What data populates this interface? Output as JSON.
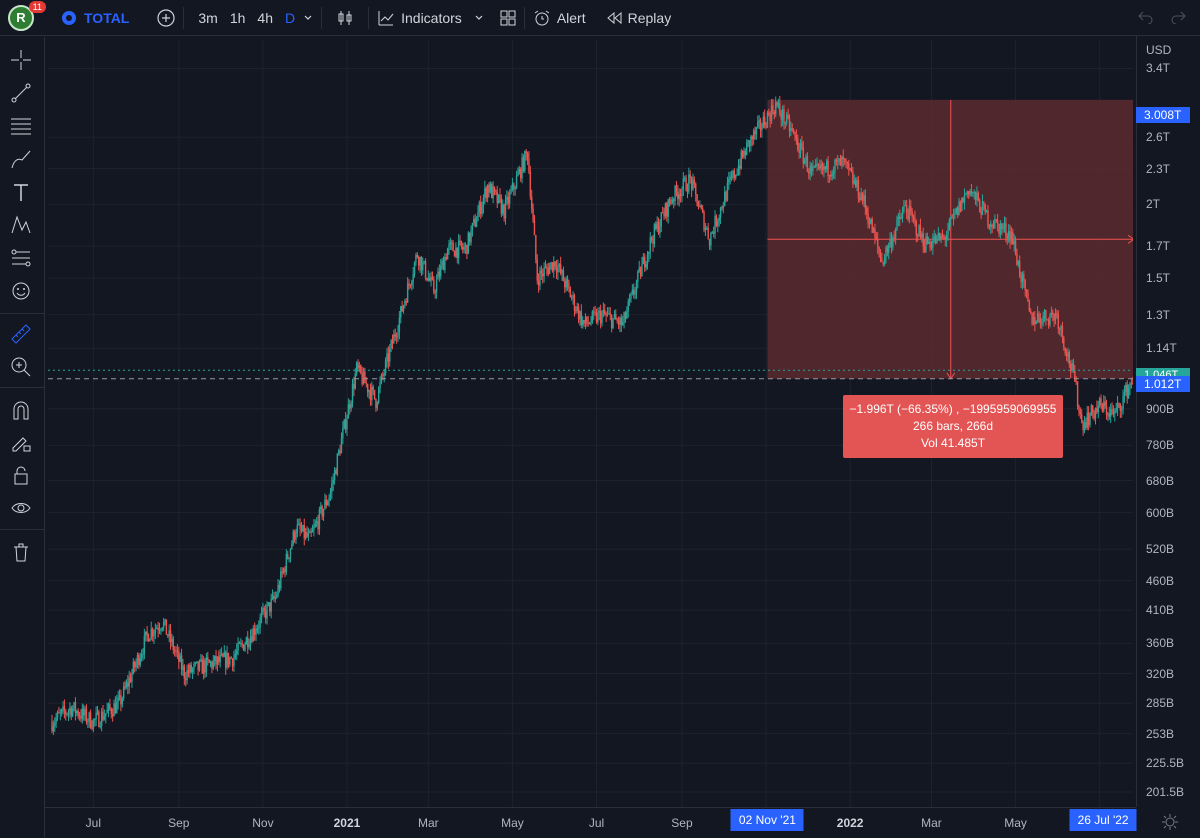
{
  "header": {
    "avatar_letter": "R",
    "notification_count": "11",
    "symbol": "TOTAL",
    "timeframes": [
      "3m",
      "1h",
      "4h",
      "D"
    ],
    "active_timeframe": "D",
    "indicators_label": "Indicators",
    "alert_label": "Alert",
    "replay_label": "Replay",
    "icons": [
      "plus-circle-icon",
      "chevron-down-icon",
      "candles-icon",
      "indicators-icon",
      "layout-grid-icon",
      "alarm-clock-icon",
      "replay-icon",
      "undo-icon",
      "redo-icon"
    ]
  },
  "left_toolbar": {
    "tools": [
      "crosshair-icon",
      "trend-line-icon",
      "fib-lines-icon",
      "brush-icon",
      "text-icon",
      "pattern-icon",
      "prediction-icon",
      "emoji-icon",
      "ruler-icon",
      "zoom-icon",
      "magnet-icon",
      "lock-drawing-icon",
      "lock-icon",
      "eye-icon",
      "trash-icon"
    ],
    "active_tool": "ruler-icon"
  },
  "price_axis": {
    "currency": "USD",
    "labels": [
      "3.4T",
      "2.6T",
      "2.3T",
      "2T",
      "1.7T",
      "1.5T",
      "1.3T",
      "1.14T",
      "900B",
      "780B",
      "680B",
      "600B",
      "520B",
      "460B",
      "410B",
      "360B",
      "320B",
      "285B",
      "253B",
      "225.5B",
      "201.5B"
    ],
    "highlight_top": "3.008T",
    "last_price": "1.046T",
    "crosshair_price": "1.012T"
  },
  "time_axis": {
    "labels": [
      "Jul",
      "Sep",
      "Nov",
      "2021",
      "Mar",
      "May",
      "Jul",
      "Sep",
      "2022",
      "Mar",
      "May"
    ],
    "bold_labels": [
      "2021",
      "2022"
    ],
    "highlight_start": "02 Nov '21",
    "highlight_end": "26 Jul '22"
  },
  "measure_tooltip": {
    "line1": "−1.996T (−66.35%) , −1995959069955",
    "line2": "266 bars, 266d",
    "line3": "Vol 41.485T"
  },
  "colors": {
    "background": "#131722",
    "up": "#26a69a",
    "down": "#ef5350",
    "accent": "#2962ff",
    "measure_fill": "#5c2a2e",
    "tooltip": "#e35454"
  },
  "chart_data": {
    "type": "candlestick",
    "title": "",
    "x_range": [
      "2020-06-01",
      "2022-07-31"
    ],
    "y_scale": "log",
    "ylim_usd": [
      190000000000,
      3800000000000
    ],
    "anchors": [
      [
        "2020-06-01",
        265
      ],
      [
        "2020-06-15",
        280
      ],
      [
        "2020-07-01",
        265
      ],
      [
        "2020-07-20",
        285
      ],
      [
        "2020-08-10",
        375
      ],
      [
        "2020-08-20",
        392
      ],
      [
        "2020-09-05",
        320
      ],
      [
        "2020-09-20",
        330
      ],
      [
        "2020-10-10",
        340
      ],
      [
        "2020-10-25",
        378
      ],
      [
        "2020-11-10",
        430
      ],
      [
        "2020-11-25",
        565
      ],
      [
        "2020-12-05",
        540
      ],
      [
        "2020-12-20",
        650
      ],
      [
        "2021-01-08",
        1050
      ],
      [
        "2021-01-22",
        930
      ],
      [
        "2021-02-10",
        1330
      ],
      [
        "2021-02-21",
        1650
      ],
      [
        "2021-03-05",
        1430
      ],
      [
        "2021-03-15",
        1680
      ],
      [
        "2021-03-28",
        1680
      ],
      [
        "2021-04-13",
        2150
      ],
      [
        "2021-04-25",
        1950
      ],
      [
        "2021-05-12",
        2450
      ],
      [
        "2021-05-19",
        1500
      ],
      [
        "2021-06-01",
        1600
      ],
      [
        "2021-06-22",
        1250
      ],
      [
        "2021-07-05",
        1300
      ],
      [
        "2021-07-20",
        1250
      ],
      [
        "2021-08-10",
        1750
      ],
      [
        "2021-08-25",
        2060
      ],
      [
        "2021-09-07",
        2200
      ],
      [
        "2021-09-21",
        1750
      ],
      [
        "2021-10-05",
        2150
      ],
      [
        "2021-10-20",
        2550
      ],
      [
        "2021-11-08",
        2950
      ],
      [
        "2021-11-20",
        2650
      ],
      [
        "2021-12-04",
        2250
      ],
      [
        "2021-12-27",
        2350
      ],
      [
        "2022-01-10",
        2050
      ],
      [
        "2022-01-24",
        1600
      ],
      [
        "2022-02-10",
        1980
      ],
      [
        "2022-02-24",
        1720
      ],
      [
        "2022-03-10",
        1750
      ],
      [
        "2022-03-28",
        2130
      ],
      [
        "2022-04-12",
        1880
      ],
      [
        "2022-04-28",
        1780
      ],
      [
        "2022-05-12",
        1280
      ],
      [
        "2022-05-31",
        1300
      ],
      [
        "2022-06-13",
        1000
      ],
      [
        "2022-06-18",
        850
      ],
      [
        "2022-07-01",
        910
      ],
      [
        "2022-07-12",
        880
      ],
      [
        "2022-07-28",
        1046
      ]
    ],
    "measurement": {
      "start_date": "2021-11-02",
      "end_date": "2022-07-26",
      "start_price": "3.008T",
      "end_price": "1.012T"
    }
  }
}
